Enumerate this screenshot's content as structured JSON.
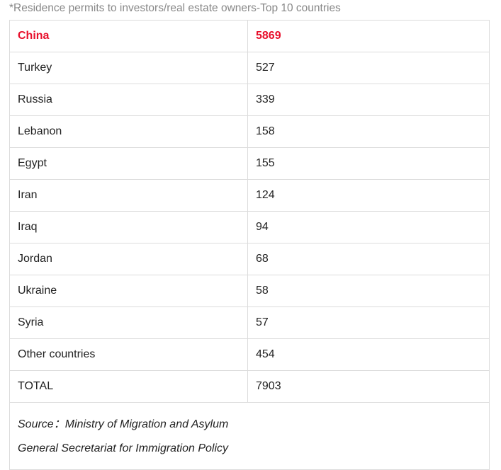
{
  "caption": "*Residence permits to investors/real estate owners-Top 10 countries",
  "highlight_color": "#e8102c",
  "rows": [
    {
      "country": "China",
      "value": "5869"
    },
    {
      "country": "Turkey",
      "value": "527"
    },
    {
      "country": "Russia",
      "value": "339"
    },
    {
      "country": "Lebanon",
      "value": "158"
    },
    {
      "country": "Egypt",
      "value": "155"
    },
    {
      "country": "Iran",
      "value": "124"
    },
    {
      "country": "Iraq",
      "value": "94"
    },
    {
      "country": "Jordan",
      "value": "68"
    },
    {
      "country": "Ukraine",
      "value": "58"
    },
    {
      "country": "Syria",
      "value": "57"
    },
    {
      "country": "Other countries",
      "value": "454"
    },
    {
      "country": "TOTAL",
      "value": "7903"
    }
  ],
  "source": {
    "line1": "Source：Ministry of Migration and Asylum",
    "line2": "General Secretariat for Immigration Policy"
  }
}
